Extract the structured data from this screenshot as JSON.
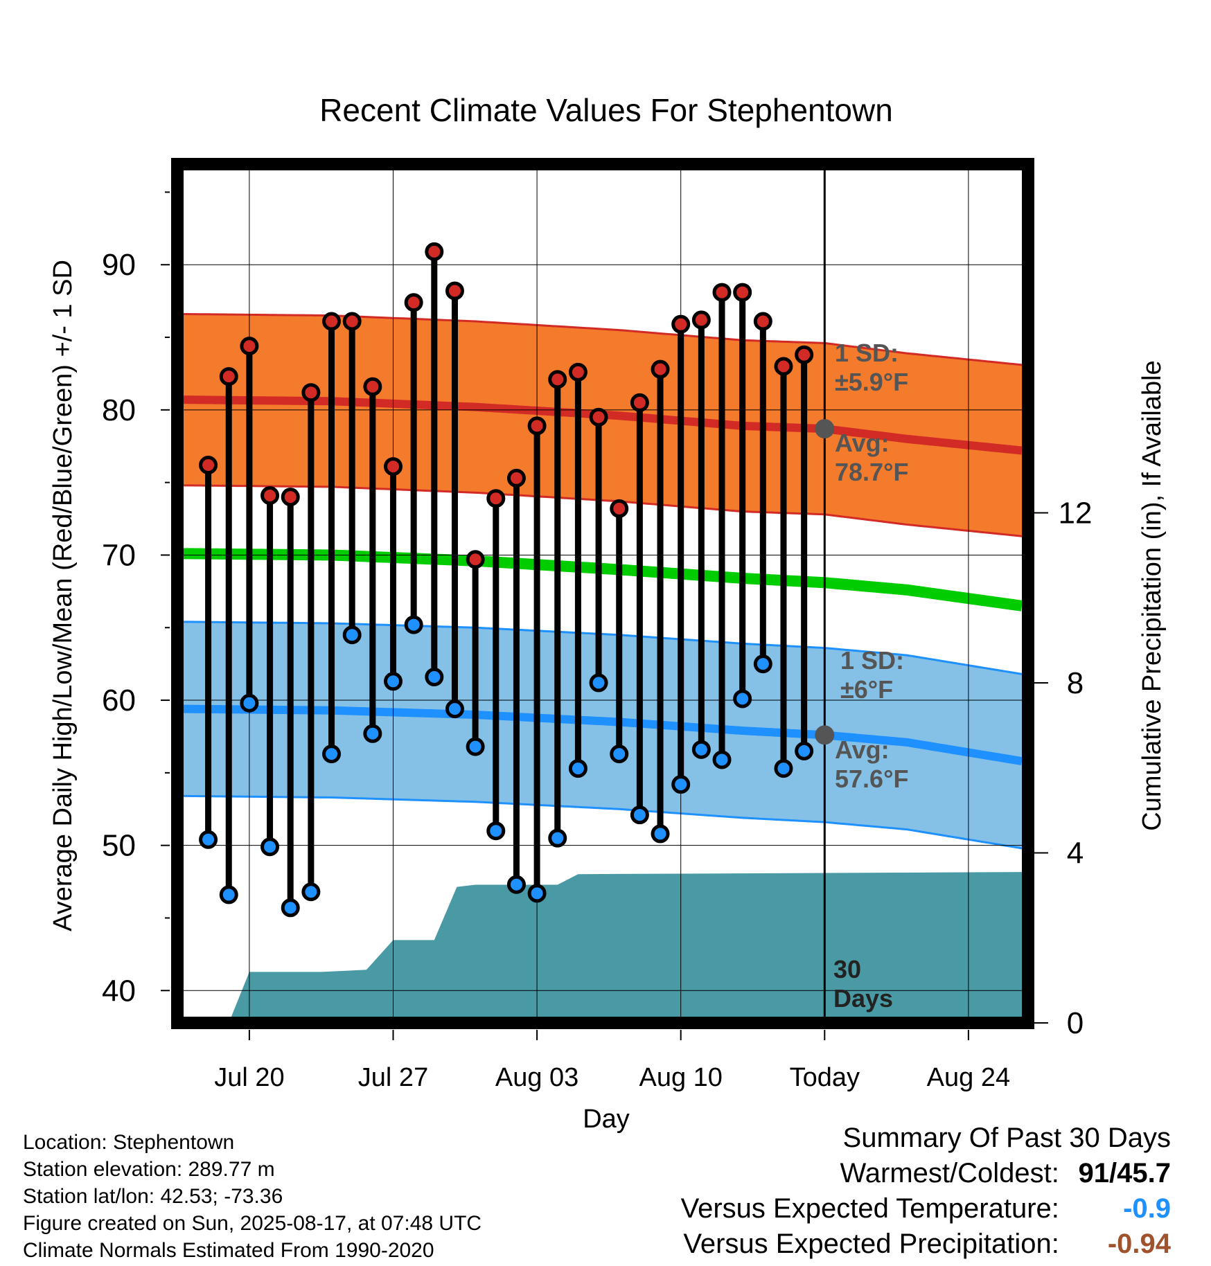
{
  "chart_data": {
    "type": "line",
    "title": "Recent Climate Values For Stephentown",
    "xlabel": "Day",
    "ylabel": "Average Daily High/Low/Mean (Red/Blue/Green) +/- 1 SD",
    "y2label": "Cumulative Precipitation (in), If Available",
    "xticks": [
      {
        "day": 20,
        "label": "Jul 20"
      },
      {
        "day": 27,
        "label": "Jul 27"
      },
      {
        "day": 34,
        "label": "Aug 03"
      },
      {
        "day": 41,
        "label": "Aug 10"
      },
      {
        "day": 48,
        "label": "Today"
      },
      {
        "day": 55,
        "label": "Aug 24"
      }
    ],
    "xlim": [
      16.8,
      57.6
    ],
    "ylim": [
      38.2,
      96.5
    ],
    "yticks": [
      40,
      50,
      60,
      70,
      80,
      90
    ],
    "y2lim": [
      0,
      16
    ],
    "y2ticks": [
      0,
      4,
      8,
      12
    ],
    "today_day": 48,
    "days": [
      18,
      19,
      20,
      21,
      22,
      23,
      24,
      25,
      26,
      27,
      28,
      29,
      30,
      31,
      32,
      33,
      34,
      35,
      36,
      37,
      38,
      39,
      40,
      41,
      42,
      43,
      44,
      45,
      46,
      47
    ],
    "highs": [
      76.2,
      82.3,
      84.4,
      74.1,
      74.0,
      81.2,
      86.1,
      86.1,
      81.6,
      76.1,
      87.4,
      90.9,
      88.2,
      69.7,
      73.9,
      75.3,
      78.9,
      82.1,
      82.6,
      79.5,
      73.2,
      80.5,
      82.8,
      85.9,
      86.2,
      88.1,
      88.1,
      86.1,
      83.0,
      83.8
    ],
    "lows": [
      50.4,
      46.6,
      59.8,
      49.9,
      45.7,
      46.8,
      56.3,
      64.5,
      57.7,
      61.3,
      65.2,
      61.6,
      59.4,
      56.8,
      51.0,
      47.3,
      46.7,
      50.5,
      55.3,
      61.2,
      56.3,
      52.1,
      50.8,
      54.2,
      56.6,
      55.9,
      60.1,
      62.5,
      55.3,
      56.5
    ],
    "normal_high": {
      "days": [
        17,
        24,
        31,
        38,
        44,
        48,
        52,
        57.6
      ],
      "avg": [
        80.7,
        80.6,
        80.2,
        79.6,
        78.9,
        78.7,
        78.0,
        77.2
      ],
      "sd": 5.9
    },
    "normal_low": {
      "days": [
        17,
        24,
        31,
        38,
        44,
        48,
        52,
        57.6
      ],
      "avg": [
        59.4,
        59.3,
        59.0,
        58.5,
        57.9,
        57.6,
        57.1,
        55.8
      ],
      "sd": 6.0
    },
    "normal_mean": {
      "days": [
        17,
        24,
        31,
        38,
        44,
        48,
        52,
        57.6
      ],
      "avg": [
        70.1,
        70.0,
        69.6,
        69.0,
        68.4,
        68.1,
        67.6,
        66.5
      ]
    },
    "precip_cumulative": {
      "days": [
        19.0,
        20.0,
        23.5,
        25.7,
        27.0,
        29.0,
        30.1,
        31.0,
        35.0,
        36.0,
        57.6
      ],
      "values": [
        0.0,
        1.2,
        1.2,
        1.25,
        1.95,
        1.95,
        3.2,
        3.25,
        3.25,
        3.5,
        3.55
      ]
    },
    "annotations": {
      "high_sd": "1 SD: ±5.9°F",
      "high_avg": "Avg: 78.7°F",
      "low_sd": "1 SD: ±6°F",
      "low_avg": "Avg: 57.6°F",
      "days_label": "30 Days"
    },
    "colors": {
      "high_band": "#f47a2c",
      "high_line": "#d22a25",
      "low_band": "#85c1e7",
      "low_line": "#1e90ff",
      "mean_line": "#00cc00",
      "precip": "#4a9aa5",
      "high_dot": "#d22a25",
      "low_dot": "#1e90ff",
      "annotation": "#555555"
    },
    "grid": true
  },
  "info": {
    "location": "Location: Stephentown",
    "elevation": "Station elevation: 289.77 m",
    "latlon": "Station lat/lon: 42.53; -73.36",
    "created": "Figure created on Sun, 2025-08-17, at 07:48 UTC",
    "normals": "Climate Normals Estimated From 1990-2020"
  },
  "summary": {
    "title": "Summary Of Past 30 Days",
    "warm_cold_label": "Warmest/Coldest:",
    "warm_cold_value": "91/45.7",
    "temp_label": "Versus Expected Temperature:",
    "temp_value": "-0.9",
    "prcp_label": "Versus Expected Precipitation:",
    "prcp_value": "-0.94"
  }
}
